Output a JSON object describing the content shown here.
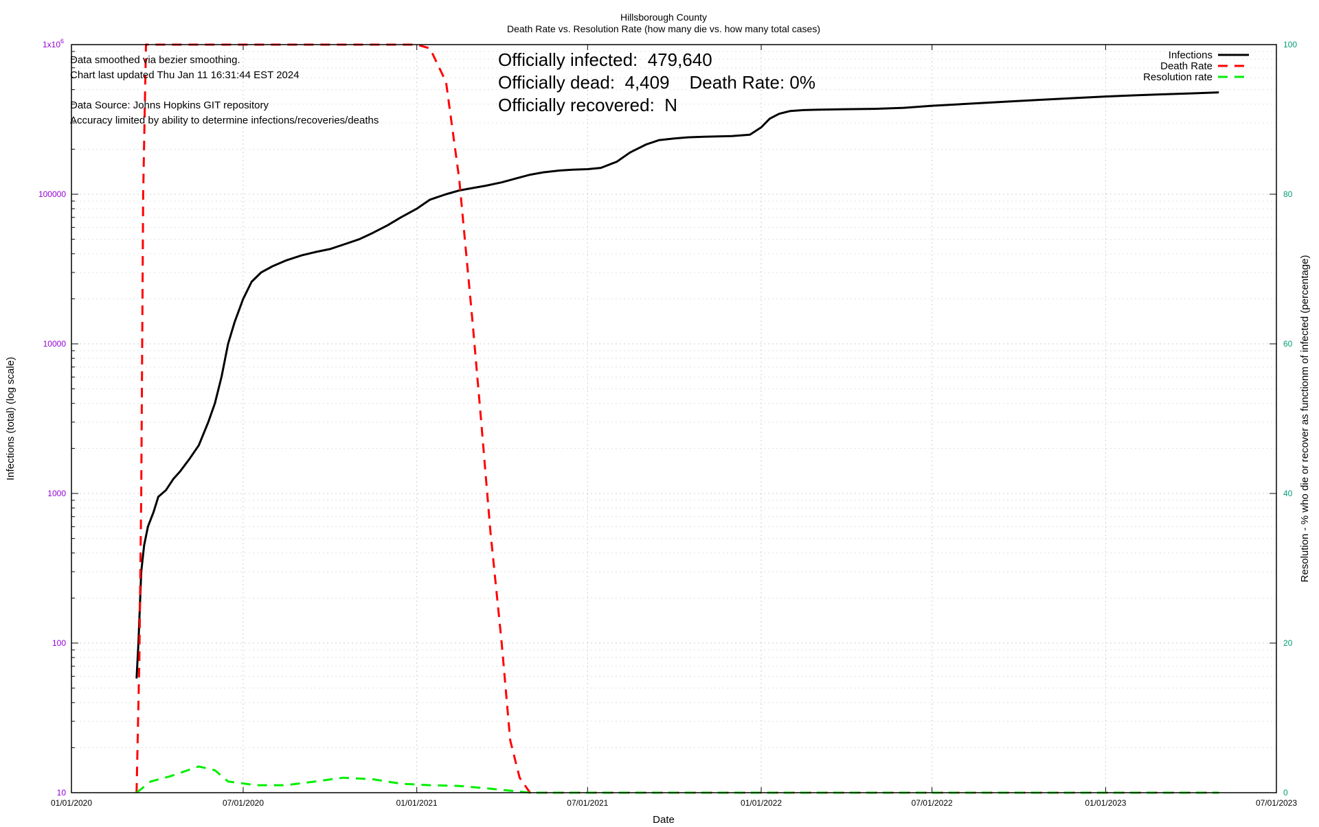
{
  "chart_data": {
    "type": "line",
    "title": "Hillsborough County",
    "subtitle": "Death Rate vs. Resolution Rate (how many die vs. how many total cases)",
    "xlabel": "Date",
    "ylabel_left": "Infections (total) (log scale)",
    "ylabel_right": "Resolution - % who die or recover as functionm of infected (percentage)",
    "x_axis": {
      "type": "date",
      "range": [
        "2020-01-01",
        "2023-07-01"
      ],
      "ticks": [
        "2020-01-01",
        "2020-07-01",
        "2021-01-01",
        "2021-07-01",
        "2022-01-01",
        "2022-07-01",
        "2023-01-01",
        "2023-07-01"
      ],
      "tick_labels": [
        "01/01/2020",
        "07/01/2020",
        "01/01/2021",
        "07/01/2021",
        "01/01/2022",
        "07/01/2022",
        "01/01/2023",
        "07/01/2023"
      ]
    },
    "y_left": {
      "scale": "log",
      "range": [
        10,
        1000000
      ],
      "ticks": [
        10,
        100,
        1000,
        10000,
        100000,
        1000000
      ],
      "tick_labels": [
        "10",
        "100",
        "1000",
        "10000",
        "100000",
        "1x10"
      ],
      "top_label_exponent": "6",
      "color": "#9400d3"
    },
    "y_right": {
      "scale": "linear",
      "range": [
        0,
        100
      ],
      "ticks": [
        0,
        20,
        40,
        60,
        80,
        100
      ],
      "tick_labels": [
        "0",
        "20",
        "40",
        "60",
        "80",
        "100"
      ],
      "color": "#009e73"
    },
    "grid": true,
    "legend_position": "top-right",
    "annotations": {
      "notes": [
        "Data smoothed via bezier smoothing.",
        "Chart last updated Thu Jan 11 16:31:44 EST 2024",
        "",
        "Data Source: Johns Hopkins GIT repository",
        "Accuracy limited by ability to determine infections/recoveries/deaths"
      ],
      "stats": [
        "Officially infected:  479,640",
        "Officially dead:  4,409    Death Rate: 0%",
        "Officially recovered:  N"
      ]
    },
    "series": [
      {
        "name": "Infections",
        "axis": "left",
        "color": "#000000",
        "style": "solid",
        "points": [
          [
            "2020-03-10",
            58
          ],
          [
            "2020-03-12",
            100
          ],
          [
            "2020-03-15",
            300
          ],
          [
            "2020-03-18",
            450
          ],
          [
            "2020-03-22",
            600
          ],
          [
            "2020-03-28",
            750
          ],
          [
            "2020-04-02",
            950
          ],
          [
            "2020-04-10",
            1050
          ],
          [
            "2020-04-18",
            1250
          ],
          [
            "2020-04-25",
            1400
          ],
          [
            "2020-05-05",
            1700
          ],
          [
            "2020-05-15",
            2100
          ],
          [
            "2020-05-25",
            3000
          ],
          [
            "2020-06-01",
            4000
          ],
          [
            "2020-06-08",
            6000
          ],
          [
            "2020-06-15",
            10000
          ],
          [
            "2020-06-22",
            14000
          ],
          [
            "2020-07-01",
            20000
          ],
          [
            "2020-07-10",
            26000
          ],
          [
            "2020-07-20",
            30000
          ],
          [
            "2020-08-01",
            33000
          ],
          [
            "2020-08-15",
            36000
          ],
          [
            "2020-09-01",
            39000
          ],
          [
            "2020-09-15",
            41000
          ],
          [
            "2020-10-01",
            43000
          ],
          [
            "2020-10-15",
            46000
          ],
          [
            "2020-11-01",
            50000
          ],
          [
            "2020-11-15",
            55000
          ],
          [
            "2020-12-01",
            62000
          ],
          [
            "2020-12-15",
            70000
          ],
          [
            "2021-01-01",
            80000
          ],
          [
            "2021-01-15",
            92000
          ],
          [
            "2021-02-01",
            100000
          ],
          [
            "2021-02-15",
            106000
          ],
          [
            "2021-03-01",
            110000
          ],
          [
            "2021-03-15",
            114000
          ],
          [
            "2021-04-01",
            120000
          ],
          [
            "2021-04-15",
            127000
          ],
          [
            "2021-05-01",
            135000
          ],
          [
            "2021-05-15",
            140000
          ],
          [
            "2021-06-01",
            144000
          ],
          [
            "2021-06-15",
            146000
          ],
          [
            "2021-07-01",
            147000
          ],
          [
            "2021-07-15",
            150000
          ],
          [
            "2021-08-01",
            165000
          ],
          [
            "2021-08-15",
            190000
          ],
          [
            "2021-09-01",
            215000
          ],
          [
            "2021-09-15",
            230000
          ],
          [
            "2021-10-01",
            236000
          ],
          [
            "2021-10-15",
            240000
          ],
          [
            "2021-11-01",
            242000
          ],
          [
            "2021-12-01",
            245000
          ],
          [
            "2021-12-20",
            250000
          ],
          [
            "2022-01-01",
            280000
          ],
          [
            "2022-01-10",
            320000
          ],
          [
            "2022-01-20",
            345000
          ],
          [
            "2022-02-01",
            360000
          ],
          [
            "2022-02-15",
            365000
          ],
          [
            "2022-03-01",
            367000
          ],
          [
            "2022-04-01",
            370000
          ],
          [
            "2022-05-01",
            372000
          ],
          [
            "2022-06-01",
            378000
          ],
          [
            "2022-07-01",
            390000
          ],
          [
            "2022-08-01",
            400000
          ],
          [
            "2022-09-01",
            410000
          ],
          [
            "2022-10-01",
            420000
          ],
          [
            "2022-11-01",
            430000
          ],
          [
            "2022-12-01",
            440000
          ],
          [
            "2023-01-01",
            450000
          ],
          [
            "2023-02-01",
            458000
          ],
          [
            "2023-03-01",
            465000
          ],
          [
            "2023-04-01",
            472000
          ],
          [
            "2023-05-01",
            479640
          ]
        ]
      },
      {
        "name": "Death Rate",
        "axis": "right",
        "color": "#ff0000",
        "style": "dashed",
        "points": [
          [
            "2020-03-10",
            0
          ],
          [
            "2020-03-13",
            18
          ],
          [
            "2020-03-15",
            40
          ],
          [
            "2020-03-17",
            80
          ],
          [
            "2020-03-20",
            100
          ],
          [
            "2021-01-01",
            100
          ],
          [
            "2021-01-15",
            99.5
          ],
          [
            "2021-02-01",
            95
          ],
          [
            "2021-02-15",
            82
          ],
          [
            "2021-03-01",
            63
          ],
          [
            "2021-03-10",
            50
          ],
          [
            "2021-03-20",
            35
          ],
          [
            "2021-04-01",
            20
          ],
          [
            "2021-04-10",
            7
          ],
          [
            "2021-04-20",
            2
          ],
          [
            "2021-05-01",
            0
          ],
          [
            "2023-05-01",
            0
          ]
        ]
      },
      {
        "name": "Resolution rate",
        "axis": "right",
        "color": "#00ee00",
        "style": "dashed",
        "points": [
          [
            "2020-03-10",
            0
          ],
          [
            "2020-03-25",
            1.5
          ],
          [
            "2020-04-15",
            2.2
          ],
          [
            "2020-05-15",
            3.5
          ],
          [
            "2020-06-01",
            3.0
          ],
          [
            "2020-06-15",
            1.5
          ],
          [
            "2020-07-15",
            1.0
          ],
          [
            "2020-08-15",
            1.0
          ],
          [
            "2020-09-15",
            1.5
          ],
          [
            "2020-10-15",
            2.0
          ],
          [
            "2020-11-15",
            1.8
          ],
          [
            "2020-12-15",
            1.2
          ],
          [
            "2021-01-15",
            1.0
          ],
          [
            "2021-02-15",
            0.9
          ],
          [
            "2021-03-15",
            0.6
          ],
          [
            "2021-04-15",
            0.2
          ],
          [
            "2021-05-01",
            0
          ],
          [
            "2023-05-01",
            0
          ]
        ]
      }
    ]
  }
}
